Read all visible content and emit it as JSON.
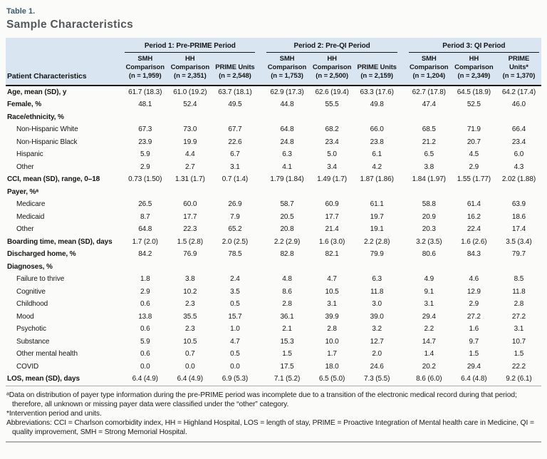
{
  "page": {
    "table_label": "Table 1.",
    "title": "Sample Characteristics"
  },
  "table": {
    "corner_header": "Patient Characteristics",
    "groups": [
      {
        "title": "Period 1: Pre-PRIME Period",
        "cols": [
          "SMH\nComparison\n(n = 1,959)",
          "HH\nComparison\n(n = 2,351)",
          "PRIME Units\n(n = 2,548)"
        ]
      },
      {
        "title": "Period 2: Pre-QI Period",
        "cols": [
          "SMH\nComparison\n(n = 1,753)",
          "HH\nComparison\n(n = 2,500)",
          "PRIME Units\n(n = 2,159)"
        ]
      },
      {
        "title": "Period 3: QI Period",
        "cols": [
          "SMH\nComparison\n(n = 1,204)",
          "HH\nComparison\n(n = 2,349)",
          "PRIME\nUnits*\n(n = 1,370)"
        ]
      }
    ],
    "rows": [
      {
        "label": "Age, mean (SD), y",
        "style": "bold",
        "values": [
          "61.7 (18.3)",
          "61.0 (19.2)",
          "63.7 (18.1)",
          "62.9 (17.3)",
          "62.6 (19.4)",
          "63.3 (17.6)",
          "62.7 (17.8)",
          "64.5 (18.9)",
          "64.2 (17.4)"
        ]
      },
      {
        "label": "Female, %",
        "style": "bold",
        "values": [
          "48.1",
          "52.4",
          "49.5",
          "44.8",
          "55.5",
          "49.8",
          "47.4",
          "52.5",
          "46.0"
        ]
      },
      {
        "label": "Race/ethnicity, %",
        "style": "bold",
        "values": []
      },
      {
        "label": "Non-Hispanic White",
        "style": "indent",
        "values": [
          "67.3",
          "73.0",
          "67.7",
          "64.8",
          "68.2",
          "66.0",
          "68.5",
          "71.9",
          "66.4"
        ]
      },
      {
        "label": "Non-Hispanic Black",
        "style": "indent",
        "values": [
          "23.9",
          "19.9",
          "22.6",
          "24.8",
          "23.4",
          "23.8",
          "21.2",
          "20.7",
          "23.4"
        ]
      },
      {
        "label": "Hispanic",
        "style": "indent",
        "values": [
          "5.9",
          "4.4",
          "6.7",
          "6.3",
          "5.0",
          "6.1",
          "6.5",
          "4.5",
          "6.0"
        ]
      },
      {
        "label": "Other",
        "style": "indent",
        "values": [
          "2.9",
          "2.7",
          "3.1",
          "4.1",
          "3.4",
          "4.2",
          "3.8",
          "2.9",
          "4.3"
        ]
      },
      {
        "label": "CCI, mean (SD), range, 0–18",
        "style": "bold",
        "values": [
          "0.73 (1.50)",
          "1.31 (1.7)",
          "0.7 (1.4)",
          "1.79 (1.84)",
          "1.49 (1.7)",
          "1.87 (1.86)",
          "1.84 (1.97)",
          "1.55 (1.77)",
          "2.02 (1.88)"
        ]
      },
      {
        "label": "Payer, %ᵃ",
        "style": "bold",
        "values": []
      },
      {
        "label": "Medicare",
        "style": "indent",
        "values": [
          "26.5",
          "60.0",
          "26.9",
          "58.7",
          "60.9",
          "61.1",
          "58.8",
          "61.4",
          "63.9"
        ]
      },
      {
        "label": "Medicaid",
        "style": "indent",
        "values": [
          "8.7",
          "17.7",
          "7.9",
          "20.5",
          "17.7",
          "19.7",
          "20.9",
          "16.2",
          "18.6"
        ]
      },
      {
        "label": "Other",
        "style": "indent",
        "values": [
          "64.8",
          "22.3",
          "65.2",
          "20.8",
          "21.4",
          "19.1",
          "20.3",
          "22.4",
          "17.4"
        ]
      },
      {
        "label": "Boarding time, mean (SD), days",
        "style": "bold",
        "values": [
          "1.7 (2.0)",
          "1.5 (2.8)",
          "2.0 (2.5)",
          "2.2 (2.9)",
          "1.6 (3.0)",
          "2.2 (2.8)",
          "3.2 (3.5)",
          "1.6 (2.6)",
          "3.5 (3.4)"
        ]
      },
      {
        "label": "Discharged home, %",
        "style": "bold",
        "values": [
          "84.2",
          "76.9",
          "78.5",
          "82.8",
          "82.1",
          "79.9",
          "80.6",
          "84.3",
          "79.7"
        ]
      },
      {
        "label": "Diagnoses, %",
        "style": "bold",
        "values": []
      },
      {
        "label": "Failure to thrive",
        "style": "indent",
        "values": [
          "1.8",
          "3.8",
          "2.4",
          "4.8",
          "4.7",
          "6.3",
          "4.9",
          "4.6",
          "8.5"
        ]
      },
      {
        "label": "Cognitive",
        "style": "indent",
        "values": [
          "2.9",
          "10.2",
          "3.5",
          "8.6",
          "10.5",
          "11.8",
          "9.1",
          "12.9",
          "11.8"
        ]
      },
      {
        "label": "Childhood",
        "style": "indent",
        "values": [
          "0.6",
          "2.3",
          "0.5",
          "2.8",
          "3.1",
          "3.0",
          "3.1",
          "2.9",
          "2.8"
        ]
      },
      {
        "label": "Mood",
        "style": "indent",
        "values": [
          "13.8",
          "35.5",
          "15.7",
          "36.1",
          "39.9",
          "39.0",
          "29.4",
          "27.2",
          "27.2"
        ]
      },
      {
        "label": "Psychotic",
        "style": "indent",
        "values": [
          "0.6",
          "2.3",
          "1.0",
          "2.1",
          "2.8",
          "3.2",
          "2.2",
          "1.6",
          "3.1"
        ]
      },
      {
        "label": "Substance",
        "style": "indent",
        "values": [
          "5.9",
          "10.5",
          "4.7",
          "15.3",
          "10.0",
          "12.7",
          "14.7",
          "9.7",
          "10.7"
        ]
      },
      {
        "label": "Other mental health",
        "style": "indent",
        "values": [
          "0.6",
          "0.7",
          "0.5",
          "1.5",
          "1.7",
          "2.0",
          "1.4",
          "1.5",
          "1.5"
        ]
      },
      {
        "label": "COVID",
        "style": "indent",
        "values": [
          "0.0",
          "0.0",
          "0.0",
          "17.5",
          "18.0",
          "24.6",
          "20.2",
          "29.4",
          "22.2"
        ]
      },
      {
        "label": "LOS, mean (SD), days",
        "style": "bold",
        "values": [
          "6.4 (4.9)",
          "6.4 (4.9)",
          "6.9 (5.3)",
          "7.1 (5.2)",
          "6.5 (5.0)",
          "7.3 (5.5)",
          "8.6 (6.0)",
          "6.4 (4.8)",
          "9.2 (6.1)"
        ]
      }
    ]
  },
  "footnotes": [
    "ᵃData on distribution of payer type information during the pre-PRIME period was incomplete due to a transition of the electronic medical record during that period; therefore, all unknown or missing payer data were classified under the “other” category.",
    "*Intervention period and units.",
    "Abbreviations: CCI = Charlson comorbidity index, HH = Highland Hospital, LOS = length of stay, PRIME = Proactive Integration of Mental health care in Medicine, QI = quality improvement, SMH = Strong Memorial Hospital."
  ],
  "colors": {
    "header_bg": "#d9e6f2",
    "rule_black": "#151515",
    "bottom_rule": "#b3b3b3",
    "table_label_color": "#3c5a6e",
    "title_color": "#54585b"
  }
}
